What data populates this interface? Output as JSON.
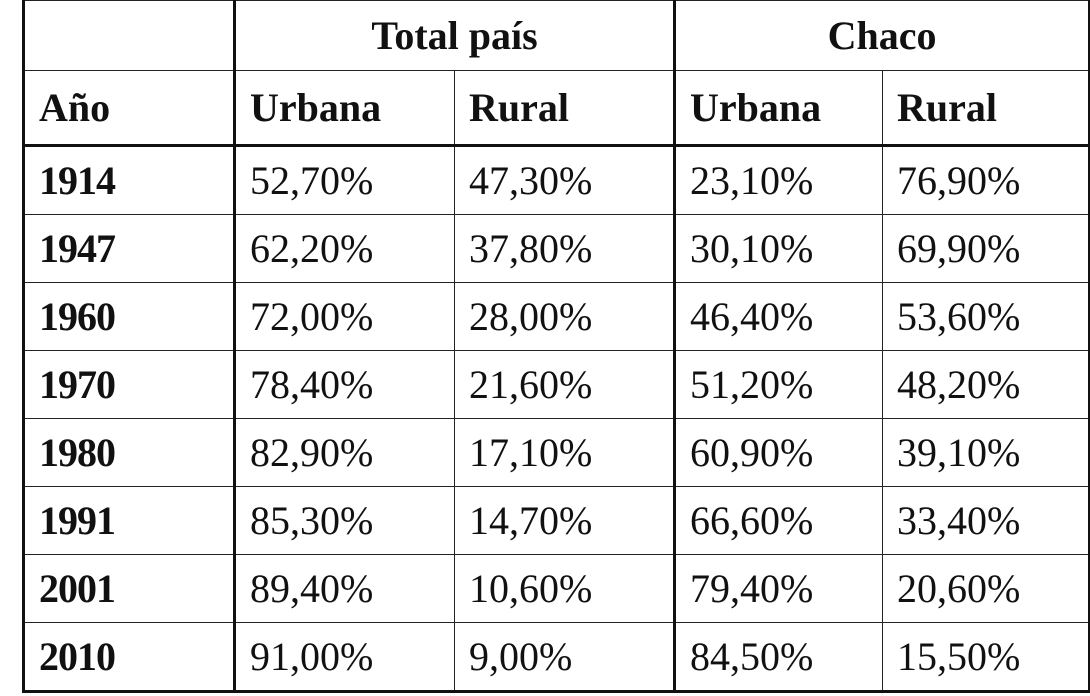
{
  "chart_data": {
    "type": "table",
    "column_groups": [
      {
        "label": "",
        "span": 1
      },
      {
        "label": "Total país",
        "span": 2
      },
      {
        "label": "Chaco",
        "span": 2
      }
    ],
    "columns": [
      "Año",
      "Urbana",
      "Rural",
      "Urbana",
      "Rural"
    ],
    "rows": [
      [
        "1914",
        "52,70%",
        "47,30%",
        "23,10%",
        "76,90%"
      ],
      [
        "1947",
        "62,20%",
        "37,80%",
        "30,10%",
        "69,90%"
      ],
      [
        "1960",
        "72,00%",
        "28,00%",
        "46,40%",
        "53,60%"
      ],
      [
        "1970",
        "78,40%",
        "21,60%",
        "51,20%",
        "48,20%"
      ],
      [
        "1980",
        "82,90%",
        "17,10%",
        "60,90%",
        "39,10%"
      ],
      [
        "1991",
        "85,30%",
        "14,70%",
        "66,60%",
        "33,40%"
      ],
      [
        "2001",
        "89,40%",
        "10,60%",
        "79,40%",
        "20,60%"
      ],
      [
        "2010",
        "91,00%",
        "9,00%",
        "84,50%",
        "15,50%"
      ]
    ]
  }
}
